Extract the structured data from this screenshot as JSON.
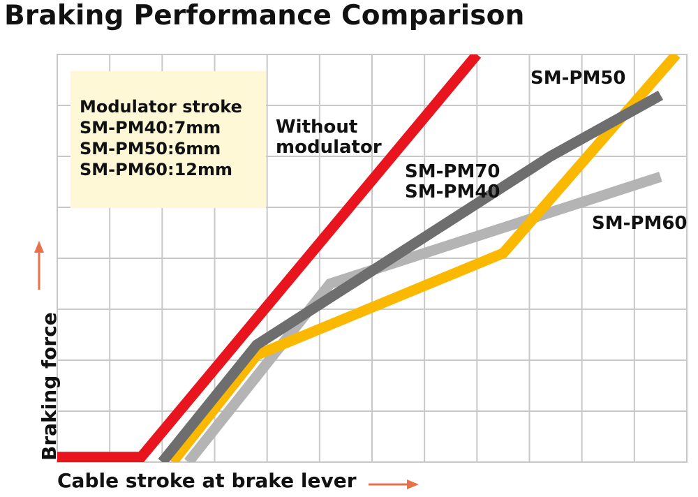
{
  "title": "Braking Performance Comparison",
  "note": {
    "lines": [
      "Modulator stroke",
      "SM-PM40:7mm",
      "SM-PM50:6mm",
      "SM-PM60:12mm"
    ]
  },
  "annotations": {
    "without_line1": "Without",
    "without_line2": "modulator",
    "pm70_pm40_line1": "SM-PM70",
    "pm70_pm40_line2": "SM-PM40",
    "pm50": "SM-PM50",
    "pm60": "SM-PM60"
  },
  "colors": {
    "grid": "#c8c8c8",
    "note_bg": "#fff8d6",
    "arrow": "#e8714a",
    "without": "#e8141e",
    "pm50": "#fbb800",
    "pm70_pm40": "#6e6e6e",
    "pm60": "#b4b4b4"
  },
  "chart_data": {
    "type": "line",
    "title": "Braking Performance Comparison",
    "xlabel": "Cable stroke at brake lever",
    "ylabel": "Braking force",
    "xlim": [
      0,
      12
    ],
    "ylim": [
      0,
      8
    ],
    "grid": true,
    "tick_labels_shown": false,
    "series": [
      {
        "name": "SM-PM60",
        "points": [
          [
            2.5,
            0
          ],
          [
            5.2,
            3.5
          ],
          [
            11.5,
            5.6
          ]
        ]
      },
      {
        "name": "SM-PM50",
        "points": [
          [
            2.2,
            0
          ],
          [
            3.8,
            2.1
          ],
          [
            8.5,
            4.1
          ],
          [
            11.8,
            8.0
          ]
        ]
      },
      {
        "name": "SM-PM70 SM-PM40",
        "points": [
          [
            2.0,
            0
          ],
          [
            3.8,
            2.3
          ],
          [
            9.4,
            6.0
          ],
          [
            11.5,
            7.2
          ]
        ]
      },
      {
        "name": "Without modulator",
        "points": [
          [
            0,
            0.1
          ],
          [
            1.6,
            0.1
          ],
          [
            8.0,
            8.0
          ]
        ]
      }
    ]
  }
}
